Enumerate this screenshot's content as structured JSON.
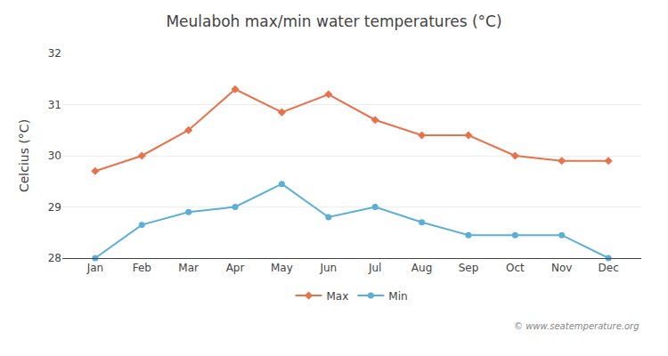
{
  "chart_data": {
    "type": "line",
    "title": "Meulaboh max/min water temperatures (°C)",
    "ylabel": "Celcius (°C)",
    "categories": [
      "Jan",
      "Feb",
      "Mar",
      "Apr",
      "May",
      "Jun",
      "Jul",
      "Aug",
      "Sep",
      "Oct",
      "Nov",
      "Dec"
    ],
    "series": [
      {
        "name": "Max",
        "color": "#e8724a",
        "marker": "diamond",
        "line_style": "solid",
        "values": [
          29.7,
          30.0,
          30.5,
          31.3,
          30.85,
          31.2,
          30.7,
          30.4,
          30.4,
          30.0,
          29.9,
          29.9
        ]
      },
      {
        "name": "Min",
        "color": "#5bafd6",
        "marker": "circle",
        "line_style": "solid",
        "values": [
          28.0,
          28.65,
          28.9,
          29.0,
          29.45,
          28.8,
          29.0,
          28.7,
          28.45,
          28.45,
          28.45,
          28.0
        ]
      }
    ],
    "ylim": [
      28,
      32
    ],
    "yticks": [
      28,
      29,
      30,
      31,
      32
    ],
    "grid": true,
    "legend": "bottom",
    "annotations": [
      "© www.seatemperature.org"
    ]
  }
}
